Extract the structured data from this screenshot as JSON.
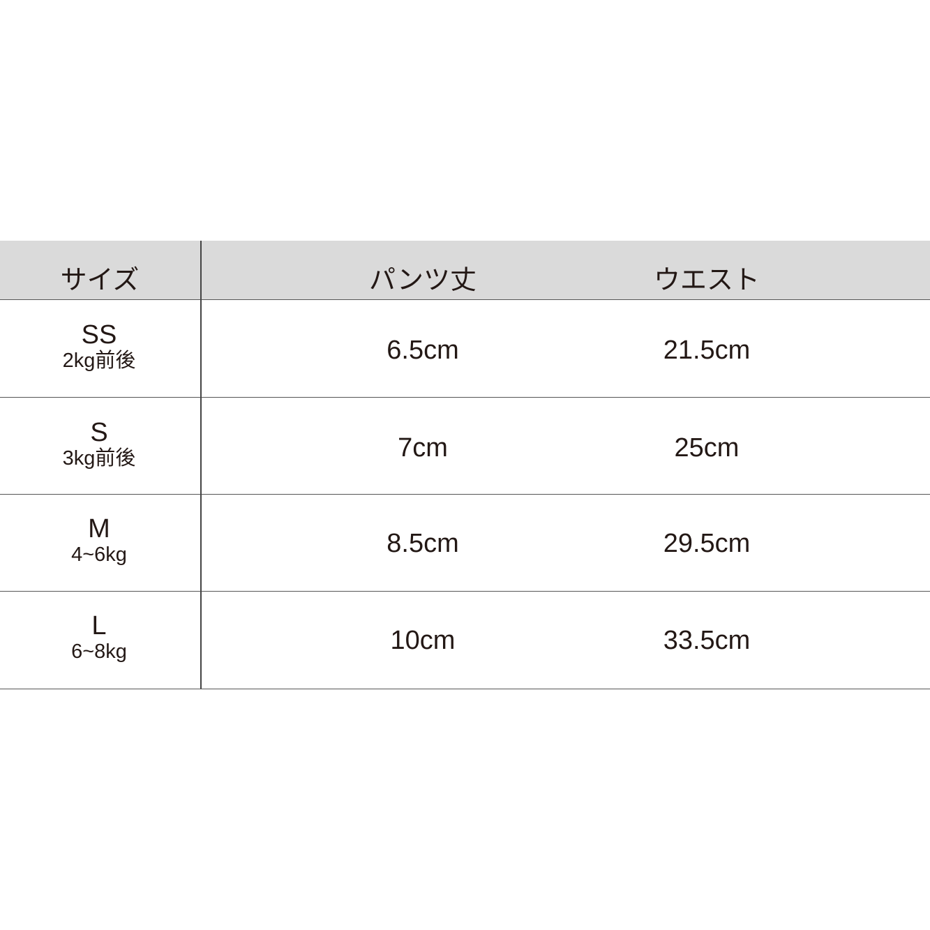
{
  "table": {
    "headers": [
      "サイズ",
      "パンツ丈",
      "ウエスト"
    ],
    "rows": [
      {
        "size": "SS",
        "weight": "2kg前後",
        "pants_length": "6.5cm",
        "waist": "21.5cm"
      },
      {
        "size": "S",
        "weight": "3kg前後",
        "pants_length": "7cm",
        "waist": "25cm"
      },
      {
        "size": "M",
        "weight": "4~6kg",
        "pants_length": "8.5cm",
        "waist": "29.5cm"
      },
      {
        "size": "L",
        "weight": "6~8kg",
        "pants_length": "10cm",
        "waist": "33.5cm"
      }
    ],
    "colors": {
      "header_bg": "#dadada",
      "text": "#231815",
      "lines": "#555555"
    }
  }
}
